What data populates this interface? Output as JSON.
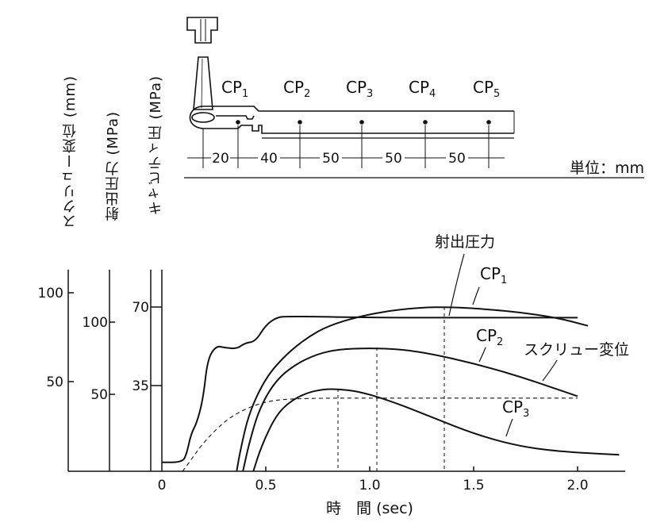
{
  "figure": {
    "cavity_points": [
      "CP",
      "CP",
      "CP",
      "CP",
      "CP"
    ],
    "cavity_point_subscripts": [
      "1",
      "2",
      "3",
      "4",
      "5"
    ],
    "spacings": [
      "20",
      "40",
      "50",
      "50",
      "50"
    ],
    "unit_label": "単位：mm",
    "axis_titles": {
      "screw": "スクリュー変位 (mm)",
      "injection": "射出圧力 (MPa)",
      "cavity": "キャビティ圧 (MPa)"
    },
    "screw_ticks": [
      "100",
      "50"
    ],
    "injection_ticks": [
      "100",
      "50"
    ],
    "cavity_ticks": [
      "70",
      "35"
    ],
    "x_ticks": [
      "0",
      "0.5",
      "1.0",
      "1.5",
      "2.0"
    ],
    "x_title": "時　間 (sec)",
    "annotations": {
      "injection": "射出圧力",
      "cp1": "CP",
      "cp1_sub": "1",
      "cp2": "CP",
      "cp2_sub": "2",
      "screw": "スクリュー変位",
      "cp3": "CP",
      "cp3_sub": "3"
    }
  },
  "chart_data": {
    "type": "line",
    "title": "",
    "xlabel": "時　間 (sec)",
    "x_unit": "sec",
    "xlim": [
      0,
      2.2
    ],
    "y_axes": [
      {
        "name": "スクリュー変位",
        "unit": "mm",
        "ticks": [
          50,
          100
        ]
      },
      {
        "name": "射出圧力",
        "unit": "MPa",
        "ticks": [
          50,
          100
        ]
      },
      {
        "name": "キャビティ圧",
        "unit": "MPa",
        "ticks": [
          35,
          70
        ]
      }
    ],
    "series": [
      {
        "name": "射出圧力",
        "axis": "射出圧力 (MPa)",
        "style": "solid",
        "x": [
          0,
          0.1,
          0.12,
          0.14,
          0.17,
          0.2,
          0.22,
          0.26,
          0.3,
          0.36,
          0.4,
          0.45,
          0.5,
          0.55,
          0.6,
          1.0,
          1.5,
          2.0
        ],
        "y": [
          6,
          6,
          12,
          25,
          33,
          50,
          75,
          84,
          83,
          82,
          86,
          87,
          98,
          103,
          104,
          103,
          103,
          103
        ]
      },
      {
        "name": "CP1",
        "axis": "キャビティ圧 (MPa)",
        "style": "solid",
        "x": [
          0.36,
          0.38,
          0.42,
          0.5,
          0.6,
          0.7,
          0.8,
          0.95,
          1.1,
          1.25,
          1.37,
          1.5,
          1.7,
          1.9,
          2.05
        ],
        "y": [
          0,
          10,
          25,
          40,
          50,
          57,
          62,
          66,
          68.5,
          69.8,
          70,
          69.5,
          68,
          65.5,
          62
        ]
      },
      {
        "name": "CP2",
        "axis": "キャビティ圧 (MPa)",
        "style": "solid",
        "x": [
          0.39,
          0.42,
          0.47,
          0.55,
          0.65,
          0.75,
          0.85,
          1.0,
          1.15,
          1.3,
          1.5,
          1.7,
          1.9,
          2.0
        ],
        "y": [
          0,
          12,
          27,
          39,
          46,
          50,
          52,
          52.5,
          52,
          50,
          46,
          41,
          35,
          32
        ]
      },
      {
        "name": "CP3",
        "axis": "キャビティ圧 (MPa)",
        "style": "solid",
        "x": [
          0.44,
          0.48,
          0.55,
          0.62,
          0.7,
          0.78,
          0.85,
          0.95,
          1.1,
          1.3,
          1.5,
          1.7,
          1.9,
          2.2
        ],
        "y": [
          0,
          11,
          24,
          30,
          33.5,
          35,
          35,
          34,
          30,
          23,
          16,
          11,
          8.5,
          7
        ]
      },
      {
        "name": "スクリュー変位",
        "axis": "スクリュー変位 (mm)",
        "style": "dashed",
        "x": [
          0.1,
          0.15,
          0.2,
          0.3,
          0.4,
          0.5,
          0.6,
          0.8,
          1.0,
          1.5,
          2.0
        ],
        "y": [
          0,
          8,
          16,
          28,
          35,
          39,
          40.5,
          41,
          41,
          41,
          41
        ]
      }
    ]
  }
}
